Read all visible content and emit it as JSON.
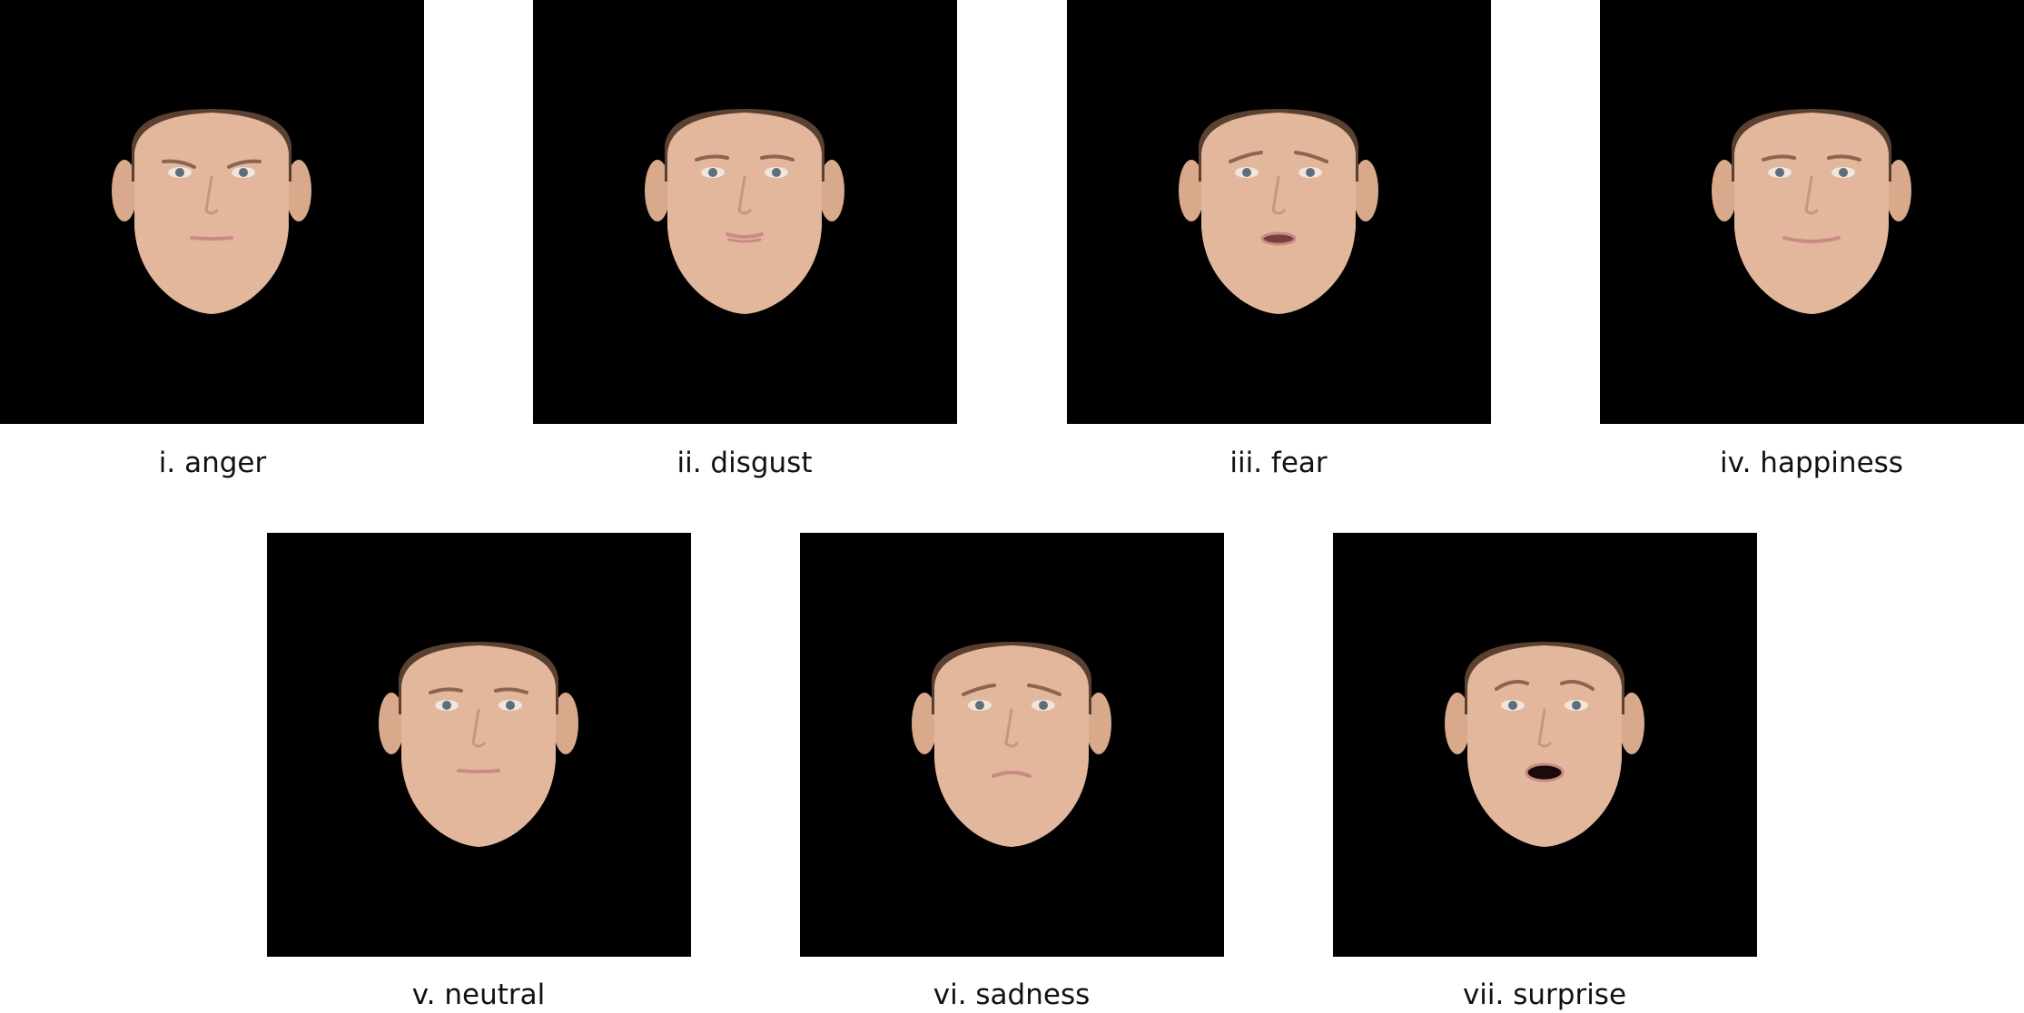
{
  "panels": [
    {
      "label": "i. anger",
      "expression": "anger"
    },
    {
      "label": "ii. disgust",
      "expression": "disgust"
    },
    {
      "label": "iii. fear",
      "expression": "fear"
    },
    {
      "label": "iv. happiness",
      "expression": "happiness"
    },
    {
      "label": "v. neutral",
      "expression": "neutral"
    },
    {
      "label": "vi. sadness",
      "expression": "sadness"
    },
    {
      "label": "vii. surprise",
      "expression": "surprise"
    }
  ],
  "colors": {
    "background": "#000000",
    "skin": "#e3b79c",
    "hair": "#5a4030",
    "lips": "#c98a85"
  }
}
